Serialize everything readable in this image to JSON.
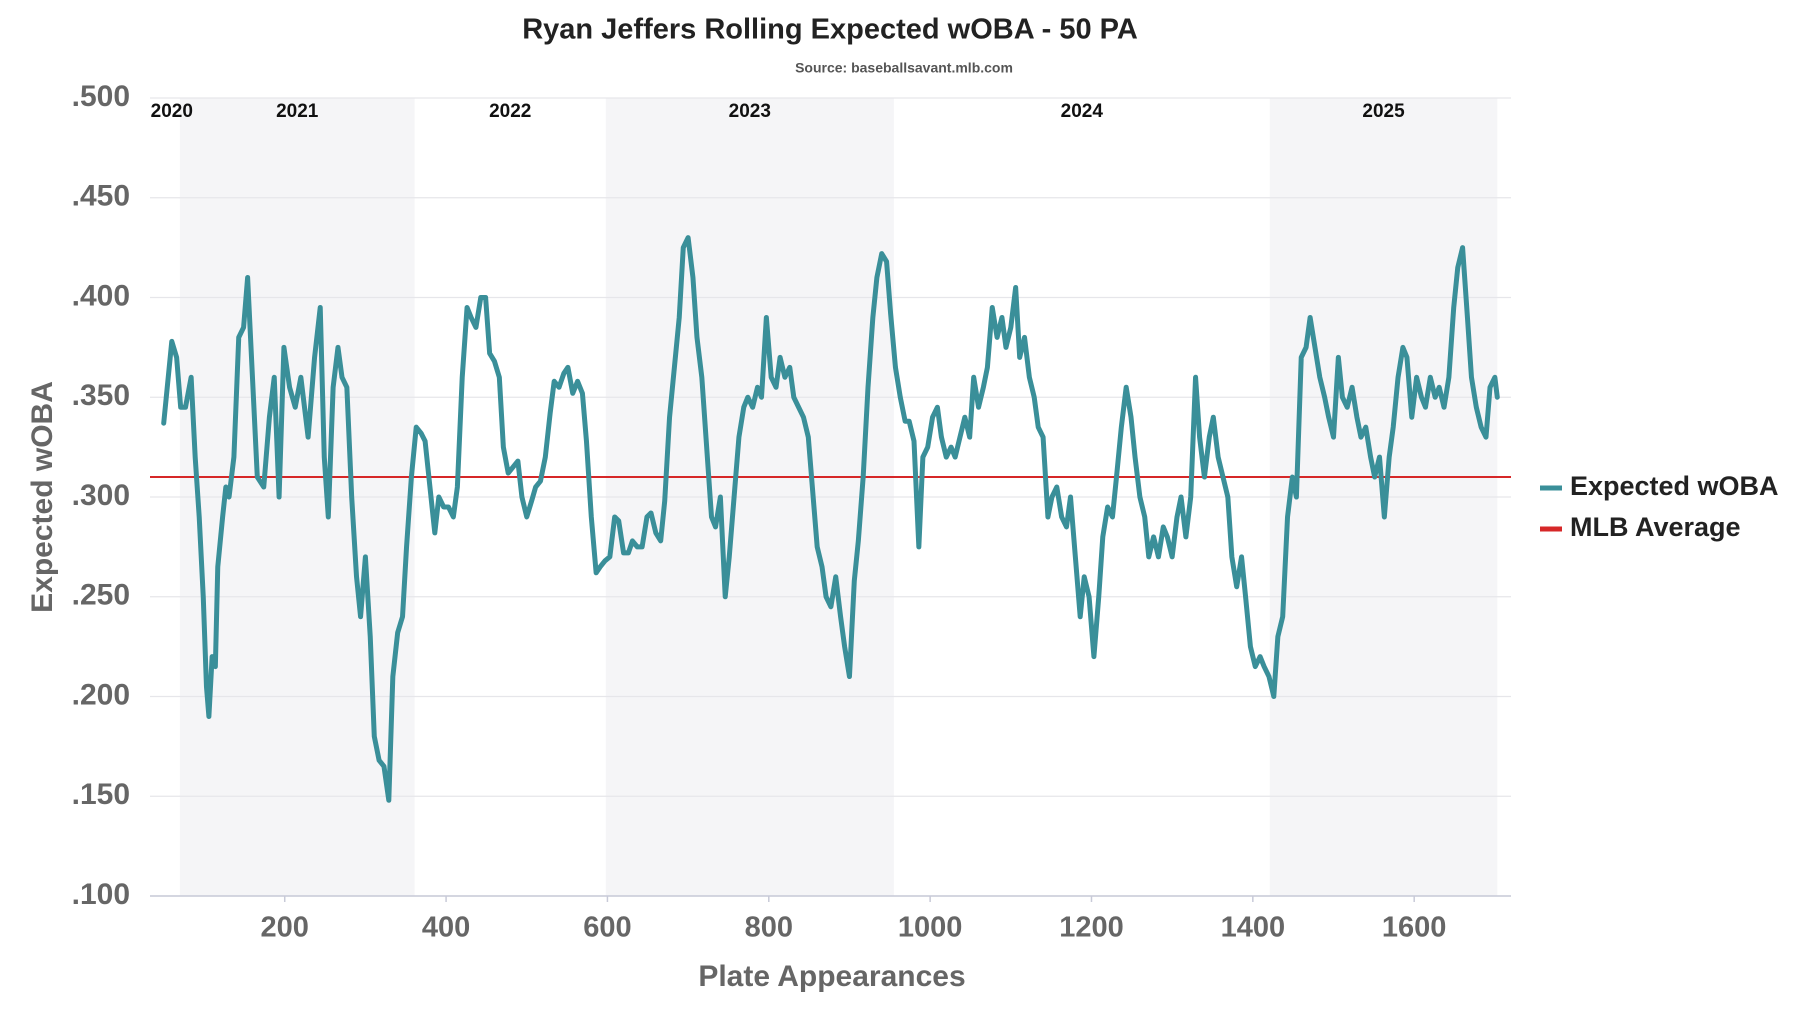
{
  "chart_data": {
    "type": "line",
    "title": "Ryan Jeffers Rolling Expected wOBA - 50 PA",
    "subtitle": "Source: baseballsavant.mlb.com",
    "xlabel": "Plate Appearances",
    "ylabel": "Expected wOBA",
    "xlim": [
      33,
      1720
    ],
    "ylim": [
      0.1,
      0.5
    ],
    "xticks": [
      200,
      400,
      600,
      800,
      1000,
      1200,
      1400,
      1600
    ],
    "yticks": [
      {
        "value": 0.1,
        "label": ".100"
      },
      {
        "value": 0.15,
        "label": ".150"
      },
      {
        "value": 0.2,
        "label": ".200"
      },
      {
        "value": 0.25,
        "label": ".250"
      },
      {
        "value": 0.3,
        "label": ".300"
      },
      {
        "value": 0.35,
        "label": ".350"
      },
      {
        "value": 0.4,
        "label": ".400"
      },
      {
        "value": 0.45,
        "label": ".450"
      },
      {
        "value": 0.5,
        "label": ".500"
      }
    ],
    "grid": true,
    "legend": "right",
    "eras": [
      {
        "label": "2020",
        "start": 50,
        "end": 70,
        "shaded": false
      },
      {
        "label": "2021",
        "start": 70,
        "end": 361,
        "shaded": true
      },
      {
        "label": "2022",
        "start": 361,
        "end": 598,
        "shaded": false
      },
      {
        "label": "2023",
        "start": 598,
        "end": 955,
        "shaded": true
      },
      {
        "label": "2024",
        "start": 955,
        "end": 1421,
        "shaded": false
      },
      {
        "label": "2025",
        "start": 1421,
        "end": 1703,
        "shaded": true
      }
    ],
    "reference_line": {
      "name": "MLB Average",
      "value": 0.31,
      "color": "#d62728"
    },
    "x": [
      50,
      60,
      66,
      71,
      77,
      84,
      89,
      94,
      99,
      103,
      106,
      110,
      114,
      117,
      123,
      127,
      131,
      137,
      143,
      149,
      154,
      160,
      166,
      174,
      181,
      187,
      193,
      199,
      206,
      213,
      220,
      229,
      237,
      244,
      249,
      254,
      260,
      266,
      271,
      277,
      283,
      289,
      294,
      300,
      306,
      311,
      317,
      323,
      329,
      334,
      340,
      346,
      351,
      357,
      363,
      369,
      374,
      380,
      386,
      391,
      397,
      403,
      409,
      414,
      420,
      426,
      431,
      437,
      443,
      449,
      454,
      460,
      466,
      471,
      477,
      483,
      489,
      494,
      500,
      506,
      511,
      517,
      523,
      529,
      534,
      540,
      546,
      551,
      557,
      563,
      569,
      574,
      580,
      586,
      591,
      597,
      603,
      609,
      614,
      620,
      626,
      631,
      637,
      643,
      649,
      654,
      660,
      666,
      671,
      677,
      683,
      689,
      694,
      700,
      706,
      711,
      717,
      723,
      729,
      734,
      740,
      746,
      751,
      757,
      763,
      769,
      774,
      780,
      786,
      791,
      797,
      803,
      809,
      814,
      820,
      826,
      831,
      837,
      843,
      849,
      854,
      860,
      866,
      871,
      877,
      883,
      889,
      894,
      900,
      906,
      911,
      917,
      923,
      929,
      934,
      940,
      946,
      951,
      957,
      963,
      969,
      974,
      980,
      986,
      991,
      997,
      1003,
      1009,
      1014,
      1020,
      1026,
      1031,
      1037,
      1043,
      1049,
      1054,
      1060,
      1066,
      1071,
      1077,
      1083,
      1089,
      1094,
      1100,
      1106,
      1111,
      1117,
      1123,
      1129,
      1134,
      1140,
      1146,
      1151,
      1157,
      1163,
      1169,
      1174,
      1180,
      1186,
      1191,
      1197,
      1203,
      1209,
      1214,
      1220,
      1226,
      1231,
      1237,
      1243,
      1249,
      1254,
      1260,
      1266,
      1271,
      1277,
      1283,
      1289,
      1294,
      1300,
      1306,
      1311,
      1317,
      1323,
      1329,
      1334,
      1340,
      1346,
      1351,
      1357,
      1363,
      1369,
      1374,
      1380,
      1386,
      1391,
      1397,
      1403,
      1409,
      1414,
      1420,
      1426,
      1431,
      1437,
      1443,
      1449,
      1454,
      1460,
      1466,
      1471,
      1477,
      1483,
      1489,
      1494,
      1500,
      1506,
      1511,
      1517,
      1523,
      1529,
      1534,
      1540,
      1546,
      1551,
      1557,
      1563,
      1569,
      1574,
      1580,
      1586,
      1591,
      1597,
      1603,
      1609,
      1614,
      1620,
      1626,
      1631,
      1637,
      1643,
      1649,
      1654,
      1660,
      1666,
      1671,
      1677,
      1683,
      1689,
      1694,
      1700,
      1703
    ],
    "series": [
      {
        "name": "Expected wOBA",
        "color": "#3a8f99",
        "values": [
          0.337,
          0.378,
          0.37,
          0.345,
          0.345,
          0.36,
          0.32,
          0.29,
          0.25,
          0.205,
          0.19,
          0.22,
          0.215,
          0.265,
          0.29,
          0.305,
          0.3,
          0.32,
          0.38,
          0.385,
          0.41,
          0.36,
          0.31,
          0.305,
          0.34,
          0.36,
          0.3,
          0.375,
          0.355,
          0.345,
          0.36,
          0.33,
          0.37,
          0.395,
          0.32,
          0.29,
          0.355,
          0.375,
          0.36,
          0.355,
          0.3,
          0.26,
          0.24,
          0.27,
          0.23,
          0.18,
          0.168,
          0.165,
          0.148,
          0.21,
          0.232,
          0.24,
          0.275,
          0.31,
          0.335,
          0.332,
          0.328,
          0.305,
          0.282,
          0.3,
          0.295,
          0.295,
          0.29,
          0.305,
          0.36,
          0.395,
          0.39,
          0.385,
          0.4,
          0.4,
          0.372,
          0.368,
          0.36,
          0.325,
          0.312,
          0.315,
          0.318,
          0.3,
          0.29,
          0.298,
          0.305,
          0.308,
          0.32,
          0.342,
          0.358,
          0.355,
          0.362,
          0.365,
          0.352,
          0.358,
          0.352,
          0.328,
          0.29,
          0.262,
          0.265,
          0.268,
          0.27,
          0.29,
          0.288,
          0.272,
          0.272,
          0.278,
          0.275,
          0.275,
          0.29,
          0.292,
          0.282,
          0.278,
          0.298,
          0.34,
          0.365,
          0.39,
          0.425,
          0.43,
          0.41,
          0.38,
          0.36,
          0.325,
          0.29,
          0.285,
          0.3,
          0.25,
          0.27,
          0.3,
          0.33,
          0.345,
          0.35,
          0.345,
          0.355,
          0.35,
          0.39,
          0.36,
          0.355,
          0.37,
          0.36,
          0.365,
          0.35,
          0.345,
          0.34,
          0.33,
          0.305,
          0.275,
          0.265,
          0.25,
          0.245,
          0.26,
          0.24,
          0.225,
          0.21,
          0.258,
          0.278,
          0.31,
          0.355,
          0.39,
          0.41,
          0.422,
          0.418,
          0.392,
          0.365,
          0.35,
          0.338,
          0.338,
          0.328,
          0.275,
          0.32,
          0.325,
          0.34,
          0.345,
          0.33,
          0.32,
          0.325,
          0.32,
          0.33,
          0.34,
          0.33,
          0.36,
          0.345,
          0.355,
          0.365,
          0.395,
          0.38,
          0.39,
          0.375,
          0.385,
          0.405,
          0.37,
          0.38,
          0.36,
          0.35,
          0.335,
          0.33,
          0.29,
          0.3,
          0.305,
          0.29,
          0.285,
          0.3,
          0.27,
          0.24,
          0.26,
          0.25,
          0.22,
          0.25,
          0.28,
          0.295,
          0.29,
          0.31,
          0.335,
          0.355,
          0.34,
          0.32,
          0.3,
          0.29,
          0.27,
          0.28,
          0.27,
          0.285,
          0.28,
          0.27,
          0.29,
          0.3,
          0.28,
          0.3,
          0.36,
          0.33,
          0.31,
          0.33,
          0.34,
          0.32,
          0.31,
          0.3,
          0.27,
          0.255,
          0.27,
          0.25,
          0.225,
          0.215,
          0.22,
          0.215,
          0.21,
          0.2,
          0.23,
          0.24,
          0.29,
          0.31,
          0.3,
          0.37,
          0.375,
          0.39,
          0.375,
          0.36,
          0.35,
          0.34,
          0.33,
          0.37,
          0.35,
          0.345,
          0.355,
          0.34,
          0.33,
          0.335,
          0.32,
          0.31,
          0.32,
          0.29,
          0.32,
          0.335,
          0.36,
          0.375,
          0.37,
          0.34,
          0.36,
          0.35,
          0.345,
          0.36,
          0.35,
          0.355,
          0.345,
          0.36,
          0.395,
          0.415,
          0.425,
          0.39,
          0.36,
          0.345,
          0.335,
          0.33,
          0.355,
          0.36,
          0.35
        ]
      }
    ]
  }
}
